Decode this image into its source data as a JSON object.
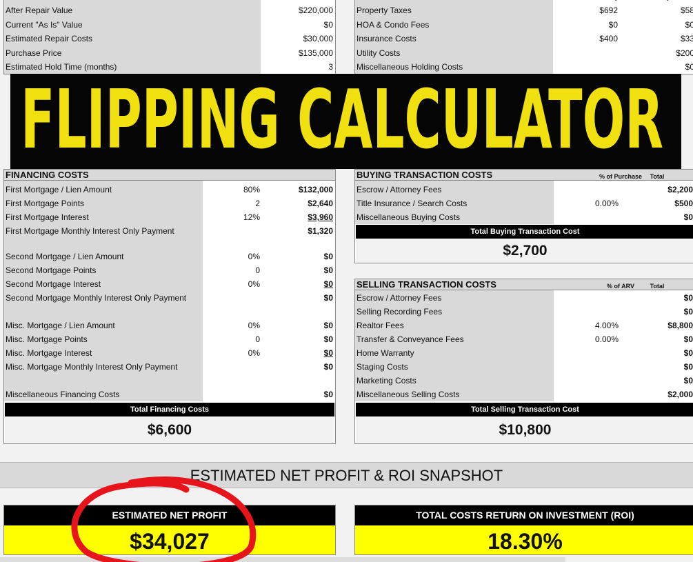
{
  "top_left": {
    "rows": [
      {
        "label": "After Repair Value",
        "value": "$220,000"
      },
      {
        "label": "Current \"As Is\" Value",
        "value": "$0"
      },
      {
        "label": "Estimated Repair Costs",
        "value": "$30,000"
      },
      {
        "label": "Purchase Price",
        "value": "$135,000"
      },
      {
        "label": "Estimated Hold Time (months)",
        "value": "3"
      }
    ]
  },
  "top_right": {
    "headers": [
      "Annually",
      "Monthly"
    ],
    "rows": [
      {
        "label": "Property Taxes",
        "annual": "$692",
        "monthly": "$58"
      },
      {
        "label": "HOA & Condo Fees",
        "annual": "$0",
        "monthly": "$0"
      },
      {
        "label": "Insurance Costs",
        "annual": "$400",
        "monthly": "$33"
      },
      {
        "label": "Utility Costs",
        "monthly": "$200"
      },
      {
        "label": "Miscellaneous Holding Costs",
        "monthly": "$0"
      }
    ]
  },
  "banner": "FLIPPING CALCULATOR",
  "financing": {
    "title": "FINANCING COSTS",
    "rows": [
      {
        "label": "First Mortgage / Lien Amount",
        "pct": "80%",
        "value": "$132,000"
      },
      {
        "label": "First Mortgage Points",
        "pct": "2",
        "value": "$2,640"
      },
      {
        "label": "First Mortgage Interest",
        "pct": "12%",
        "value": "$3,960",
        "underline": true
      },
      {
        "label": "First Mortgage Monthly Interest Only Payment",
        "value": "$1,320"
      },
      {
        "label": "Second Mortgage / Lien Amount",
        "pct": "0%",
        "value": "$0"
      },
      {
        "label": "Second Mortgage Points",
        "pct": "0",
        "value": "$0"
      },
      {
        "label": "Second Mortgage Interest",
        "pct": "0%",
        "value": "$0",
        "underline": true
      },
      {
        "label": "Second Mortgage Monthly Interest Only Payment",
        "value": "$0"
      },
      {
        "label": "Misc. Mortgage / Lien Amount",
        "pct": "0%",
        "value": "$0"
      },
      {
        "label": "Misc. Mortgage Points",
        "pct": "0",
        "value": "$0"
      },
      {
        "label": "Misc. Mortgage Interest",
        "pct": "0%",
        "value": "$0",
        "underline": true
      },
      {
        "label": "Misc. Mortgage Monthly Interest Only Payment",
        "value": "$0"
      },
      {
        "label": "Miscellaneous Financing Costs",
        "value": "$0"
      }
    ],
    "total_label": "Total Financing Costs",
    "total": "$6,600"
  },
  "buying": {
    "title": "BUYING TRANSACTION COSTS",
    "headers": [
      "% of Purchase",
      "Total"
    ],
    "rows": [
      {
        "label": "Escrow / Attorney Fees",
        "value": "$2,200"
      },
      {
        "label": "Title Insurance / Search Costs",
        "pct": "0.00%",
        "value": "$500"
      },
      {
        "label": "Miscellaneous Buying Costs",
        "value": "$0"
      }
    ],
    "total_label": "Total Buying Transaction Cost",
    "total": "$2,700"
  },
  "selling": {
    "title": "SELLING TRANSACTION COSTS",
    "headers": [
      "% of ARV",
      "Total"
    ],
    "rows": [
      {
        "label": "Escrow / Attorney Fees",
        "value": "$0"
      },
      {
        "label": "Selling Recording Fees",
        "value": "$0"
      },
      {
        "label": "Realtor Fees",
        "pct": "4.00%",
        "value": "$8,800"
      },
      {
        "label": "Transfer & Conveyance Fees",
        "pct": "0.00%",
        "value": "$0"
      },
      {
        "label": "Home Warranty",
        "value": "$0"
      },
      {
        "label": "Staging Costs",
        "value": "$0"
      },
      {
        "label": "Marketing Costs",
        "value": "$0"
      },
      {
        "label": "Miscellaneous Selling Costs",
        "value": "$2,000"
      }
    ],
    "total_label": "Total Selling Transaction Cost",
    "total": "$10,800"
  },
  "snapshot": {
    "title": "ESTIMATED NET PROFIT & ROI SNAPSHOT",
    "profit_label": "ESTIMATED NET PROFIT",
    "profit": "$34,027",
    "roi_label": "TOTAL COSTS RETURN ON INVESTMENT (ROI)",
    "roi": "18.30%"
  }
}
